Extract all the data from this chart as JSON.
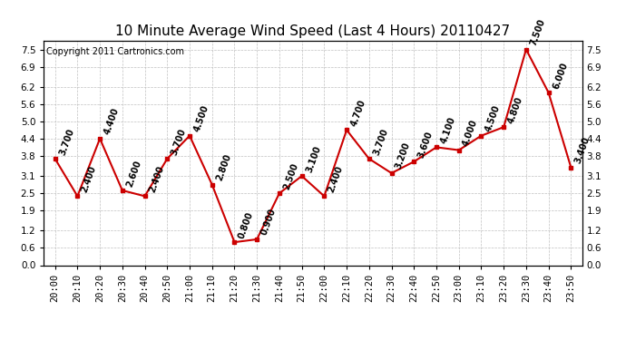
{
  "title": "10 Minute Average Wind Speed (Last 4 Hours) 20110427",
  "copyright": "Copyright 2011 Cartronics.com",
  "times": [
    "20:00",
    "20:10",
    "20:20",
    "20:30",
    "20:40",
    "20:50",
    "21:00",
    "21:10",
    "21:20",
    "21:30",
    "21:40",
    "21:50",
    "22:00",
    "22:10",
    "22:20",
    "22:30",
    "22:40",
    "22:50",
    "23:00",
    "23:10",
    "23:20",
    "23:30",
    "23:40",
    "23:50"
  ],
  "values": [
    3.7,
    2.4,
    4.4,
    2.6,
    2.4,
    3.7,
    4.5,
    2.8,
    0.8,
    0.9,
    2.5,
    3.1,
    2.4,
    4.7,
    3.7,
    3.2,
    3.6,
    4.1,
    4.0,
    4.5,
    4.8,
    7.5,
    6.0,
    3.4
  ],
  "line_color": "#cc0000",
  "marker_color": "#cc0000",
  "bg_color": "#ffffff",
  "grid_color": "#c0c0c0",
  "title_fontsize": 11,
  "copyright_fontsize": 7,
  "label_fontsize": 7,
  "tick_fontsize": 7.5,
  "ylim": [
    0.0,
    7.8
  ],
  "yticks": [
    0.0,
    0.6,
    1.2,
    1.9,
    2.5,
    3.1,
    3.8,
    4.4,
    5.0,
    5.6,
    6.2,
    6.9,
    7.5
  ]
}
